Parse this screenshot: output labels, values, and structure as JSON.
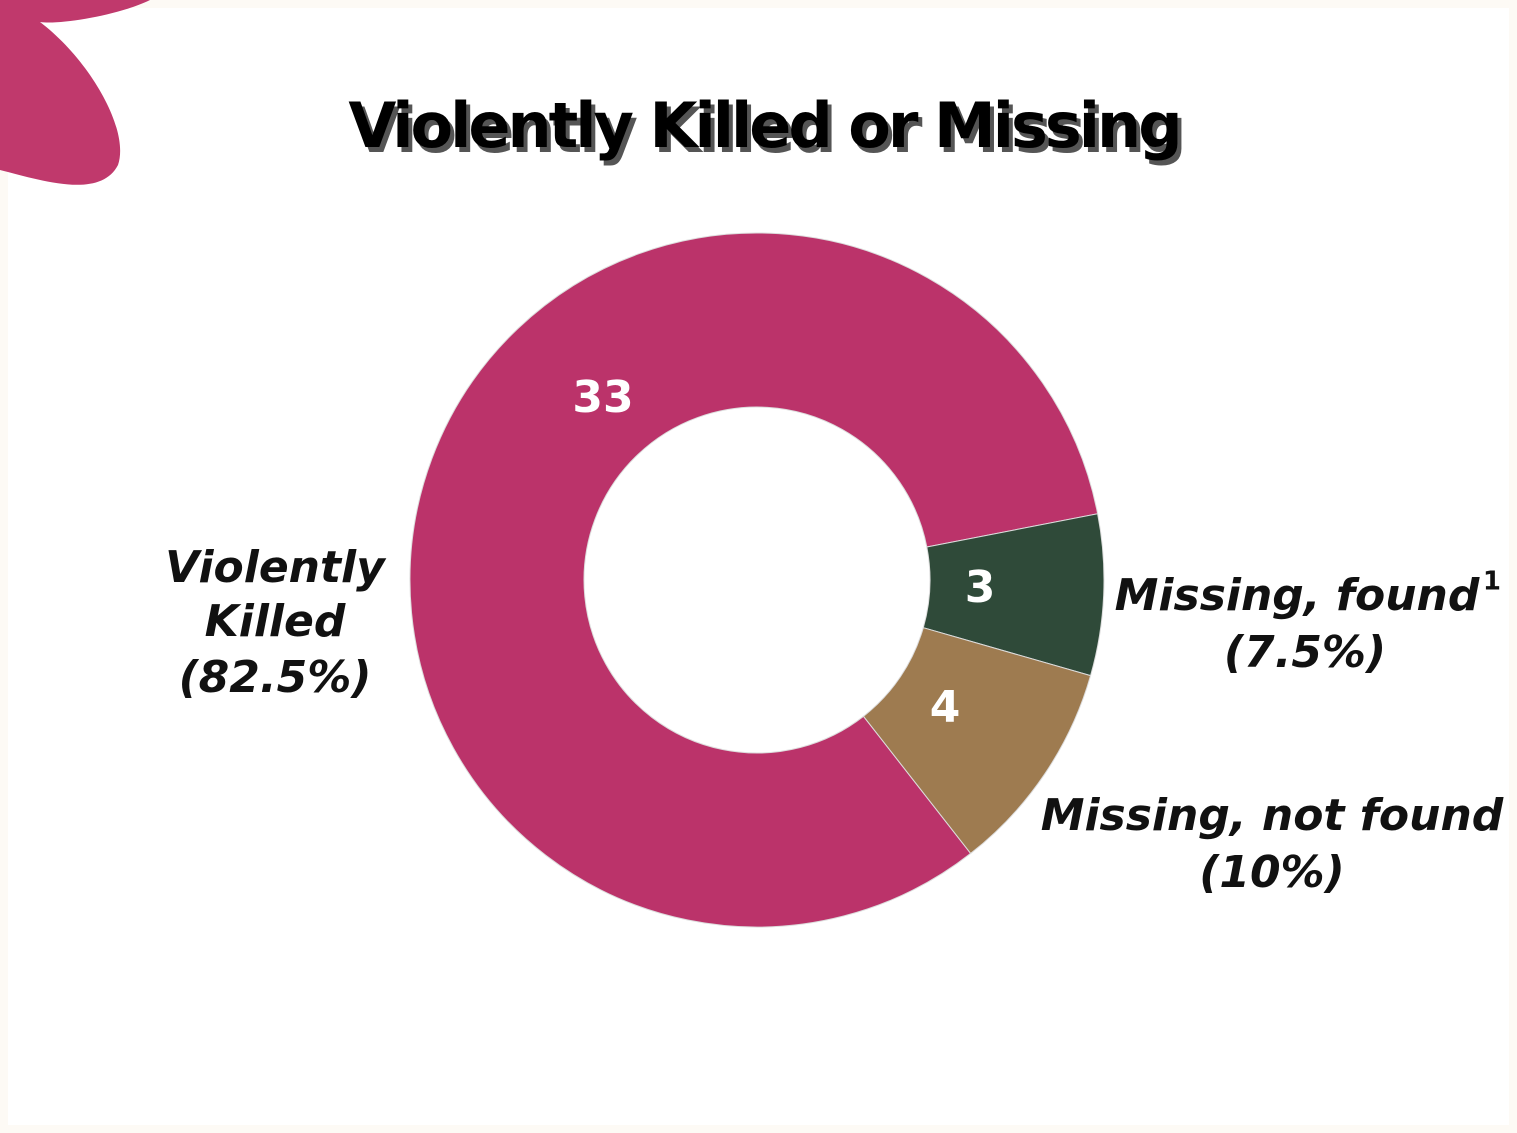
{
  "chart_data": {
    "type": "donut",
    "title": "Violently Killed or Missing",
    "categories": [
      "Violently Killed",
      "Missing, found",
      "Missing, not found"
    ],
    "category_superscripts": [
      null,
      "1",
      null
    ],
    "shares": [
      82.5,
      7.5,
      10
    ],
    "share_labels": [
      "(82.5%)",
      "(7.5%)",
      "(10%)"
    ],
    "values": [
      33,
      3,
      4
    ],
    "colors": [
      "#bb336a",
      "#2f4a39",
      "#9e7b50"
    ]
  }
}
